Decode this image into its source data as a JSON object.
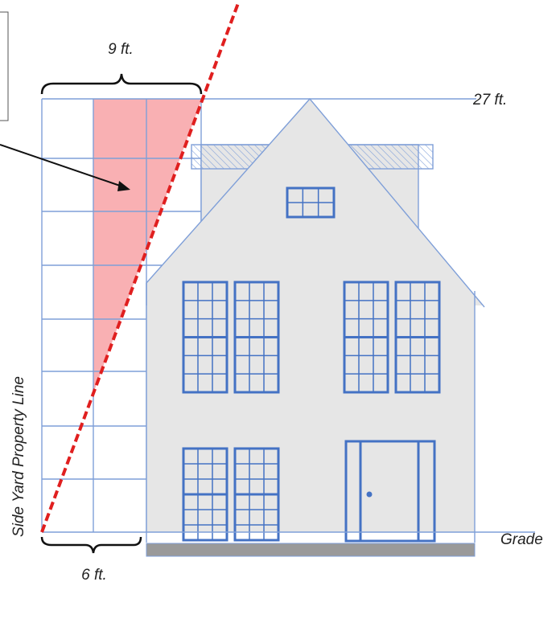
{
  "labels": {
    "top_width": "9 ft.",
    "height": "27 ft.",
    "property_line": "Side Yard Property Line",
    "bottom_width": "6 ft.",
    "grade": "Grade"
  }
}
